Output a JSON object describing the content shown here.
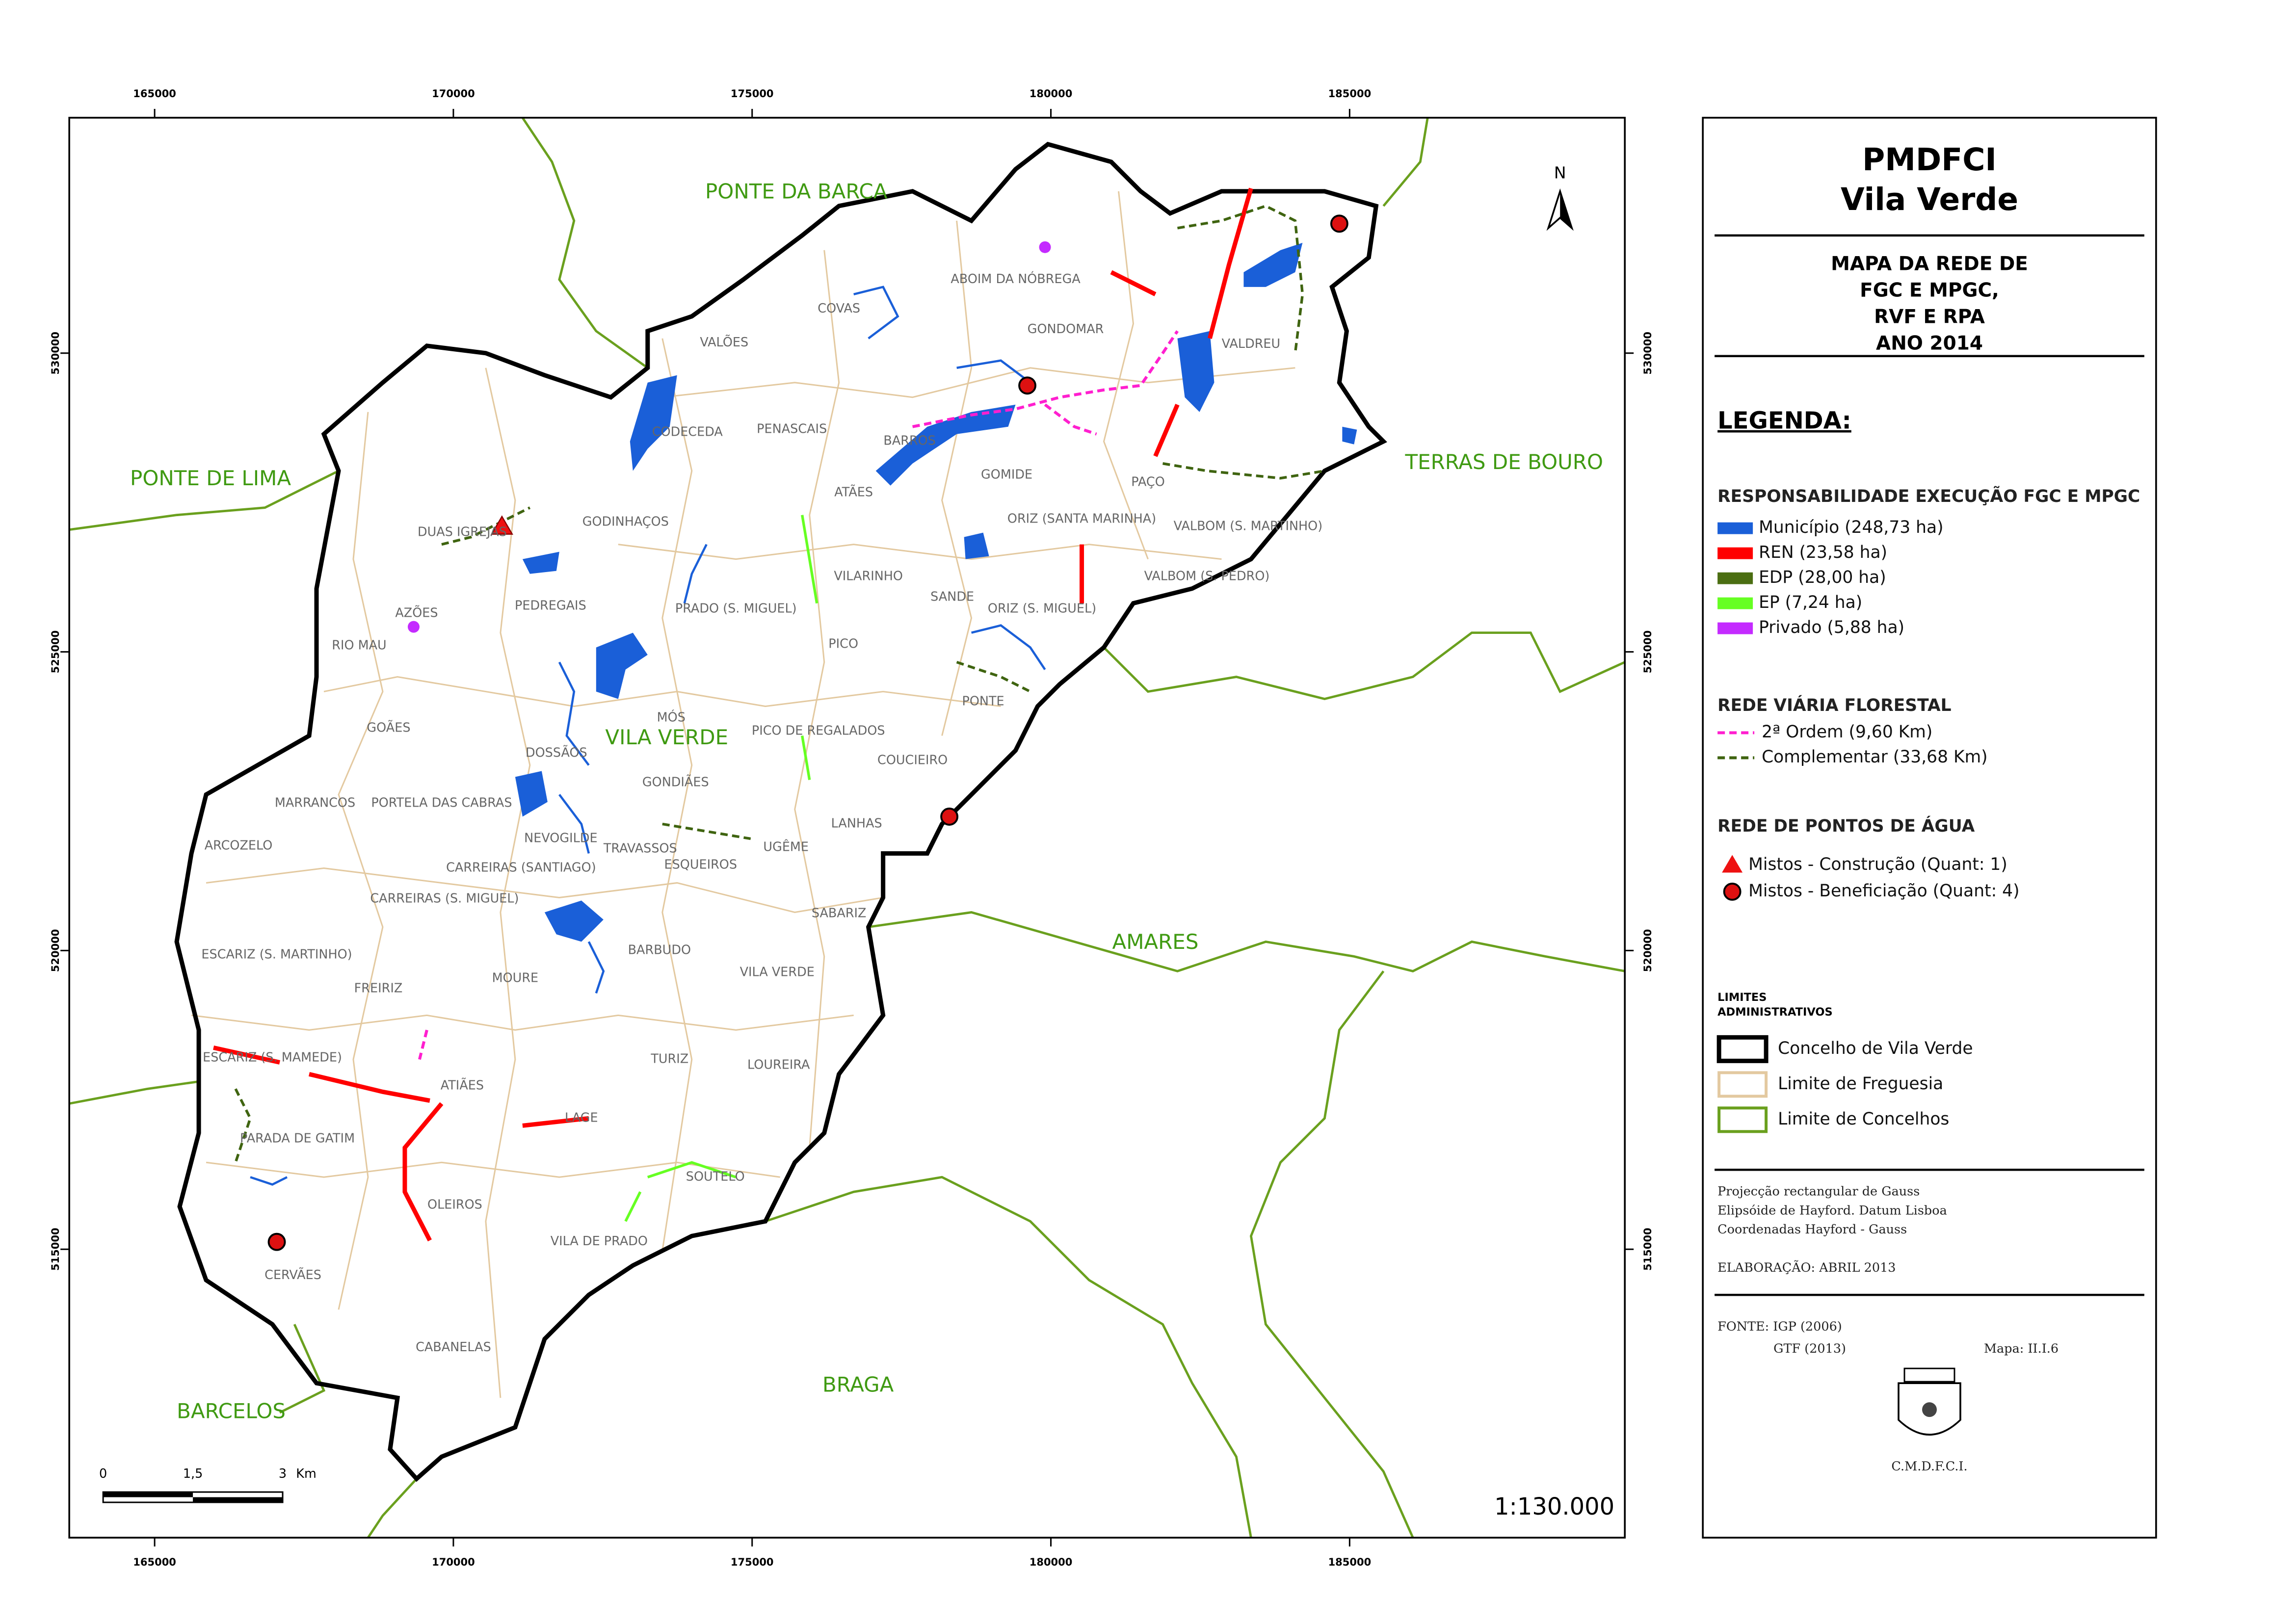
{
  "map": {
    "coord_x": [
      165000,
      170000,
      175000,
      180000,
      185000
    ],
    "coord_y": [
      530000,
      525000,
      520000,
      515000
    ],
    "neighbors": [
      "PONTE DA BARCA",
      "PONTE DE LIMA",
      "TERRAS DE BOURO",
      "AMARES",
      "BRAGA",
      "BARCELOS"
    ],
    "parishes": [
      "COVAS",
      "ABOIM DA NÓBREGA",
      "VALÕES",
      "GONDOMAR",
      "VALDREU",
      "CODECEDA",
      "PENASCAIS",
      "BARROS",
      "GOMIDE",
      "ATÃES",
      "PAÇO",
      "GODINHAÇOS",
      "DUAS IGREJAS",
      "ORIZ (SANTA MARINHA)",
      "VALBOM (S. MARTINHO)",
      "VALBOM (S. PEDRO)",
      "VILARINHO",
      "AZÕES",
      "PEDREGAIS",
      "PRADO (S. MIGUEL)",
      "SANDE",
      "ORIZ (S. MIGUEL)",
      "RIO MAU",
      "PICO",
      "MÓS",
      "PONTE",
      "GOÃES",
      "PICO DE REGALADOS",
      "DOSSÃOS",
      "COUCIEIRO",
      "GONDIÃES",
      "MARRANCOS",
      "PORTELA DAS CABRAS",
      "LANHAS",
      "NEVOGILDE",
      "TRAVASSOS",
      "UGÊME",
      "ARCOZELO",
      "ESQUEIROS",
      "CARREIRAS (SANTIAGO)",
      "CARREIRAS (S. MIGUEL)",
      "SABARIZ",
      "ESCARIZ (S. MARTINHO)",
      "BARBUDO",
      "MOURE",
      "VILA VERDE",
      "FREIRIZ",
      "ESCARIZ (S. MAMEDE)",
      "TURIZ",
      "LOUREIRA",
      "ATIÃES",
      "LAGE",
      "PARADA DE GATIM",
      "SOUTELO",
      "OLEIROS",
      "VILA DE PRADO",
      "CERVÃES",
      "CABANELAS"
    ],
    "municipality_label": "VILA VERDE",
    "north": "N",
    "scale_bar": [
      "0",
      "1,5",
      "3",
      "Km"
    ],
    "scale": "1:130.000"
  },
  "panel": {
    "title": "PMDFCI",
    "subtitle": "Vila Verde",
    "map_title": [
      "MAPA DA REDE DE",
      "FGC E MPGC,",
      "RVF E RPA",
      "ANO 2014"
    ],
    "legend_heading": "LEGENDA:",
    "fgc": {
      "title": "RESPONSABILIDADE EXECUÇÃO FGC E MPGC",
      "items": [
        {
          "label": "Município (248,73 ha)",
          "color": "#1a5fd8"
        },
        {
          "label": "REN (23,58 ha)",
          "color": "#ff0000"
        },
        {
          "label": "EDP (28,00 ha)",
          "color": "#4b6e12"
        },
        {
          "label": "EP (7,24 ha)",
          "color": "#66ff22"
        },
        {
          "label": "Privado (5,88 ha)",
          "color": "#c42bff"
        }
      ]
    },
    "rvf": {
      "title": "REDE VIÁRIA FLORESTAL",
      "items": [
        {
          "label": "2ª Ordem (9,60 Km)",
          "color": "#ff1fcf"
        },
        {
          "label": "Complementar (33,68 Km)",
          "color": "#3f6410"
        }
      ]
    },
    "rpa": {
      "title": "REDE DE PONTOS DE ÁGUA",
      "items": [
        {
          "label": "Mistos - Construção (Quant: 1)",
          "color": "#ee1111"
        },
        {
          "label": "Mistos - Beneficiação (Quant: 4)",
          "color": "#dd1111"
        }
      ]
    },
    "limits": {
      "title": [
        "LIMITES",
        "ADMINISTRATIVOS"
      ],
      "items": [
        {
          "label": "Concelho de Vila Verde",
          "color": "#000000"
        },
        {
          "label": "Limite de Freguesia",
          "color": "#e3c9a0"
        },
        {
          "label": "Limite de Concelhos",
          "color": "#6aa01e"
        }
      ]
    },
    "projection": [
      "Projecção rectangular de Gauss",
      "Elipsóide de Hayford. Datum Lisboa",
      "Coordenadas Hayford - Gauss"
    ],
    "elaboration": "ELABORAÇÃO: ABRIL 2013",
    "source": "FONTE: IGP (2006)",
    "source2": "GTF (2013)",
    "map_id": "Mapa: II.I.6",
    "footer": "C.M.D.F.C.I."
  }
}
